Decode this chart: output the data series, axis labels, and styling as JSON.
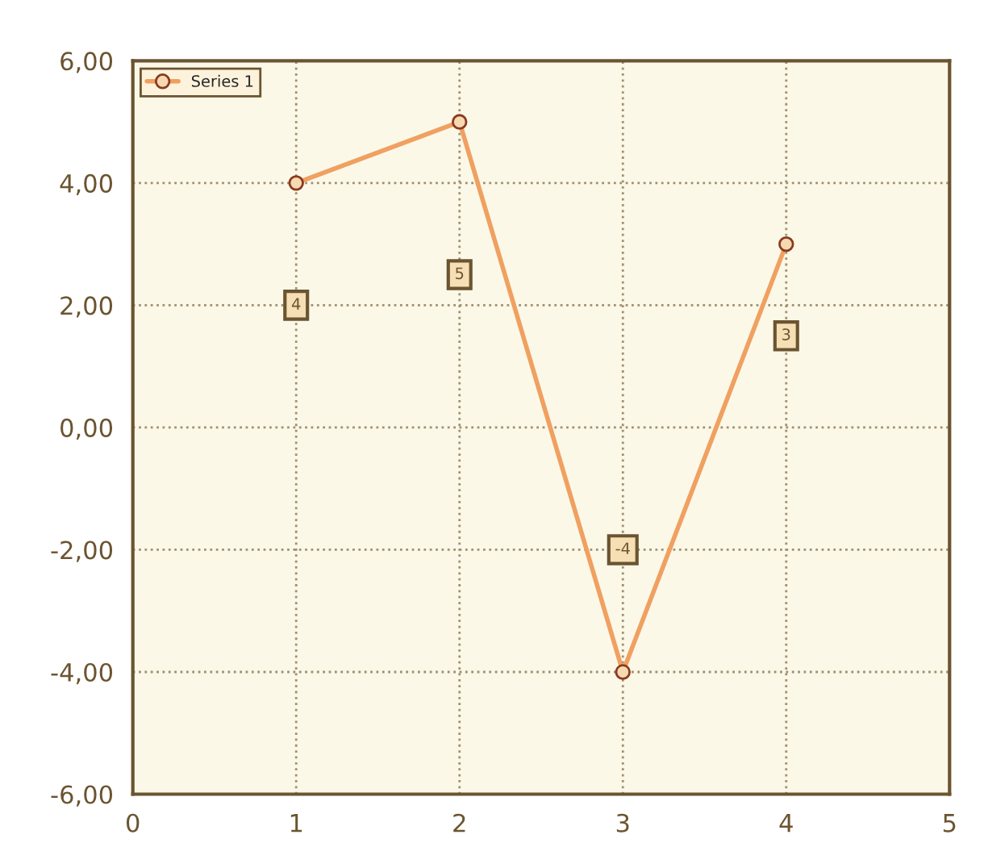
{
  "chart_data": {
    "type": "line",
    "x": [
      1,
      2,
      3,
      4
    ],
    "series": [
      {
        "name": "Series 1",
        "color": "#f0a060",
        "values": [
          4,
          5,
          -4,
          3
        ]
      }
    ],
    "xlim": [
      0,
      5
    ],
    "xticks": [
      0,
      1,
      2,
      3,
      4,
      5
    ],
    "ylim": [
      -6,
      6
    ],
    "yticks": [
      {
        "value": -6,
        "label": "-6,00"
      },
      {
        "value": -4,
        "label": "-4,00"
      },
      {
        "value": -2,
        "label": "-2,00"
      },
      {
        "value": 0,
        "label": "0,00"
      },
      {
        "value": 2,
        "label": "2,00"
      },
      {
        "value": 4,
        "label": "4,00"
      },
      {
        "value": 6,
        "label": "6,00"
      }
    ],
    "annotations": [
      {
        "text": "4",
        "x": 1,
        "y": 2
      },
      {
        "text": "5",
        "x": 2,
        "y": 2.5
      },
      {
        "text": "-4",
        "x": 3,
        "y": -2
      },
      {
        "text": "3",
        "x": 4,
        "y": 1.5
      }
    ],
    "grid": true,
    "legend": "top left",
    "marker": "circle",
    "line_style": "solid"
  }
}
